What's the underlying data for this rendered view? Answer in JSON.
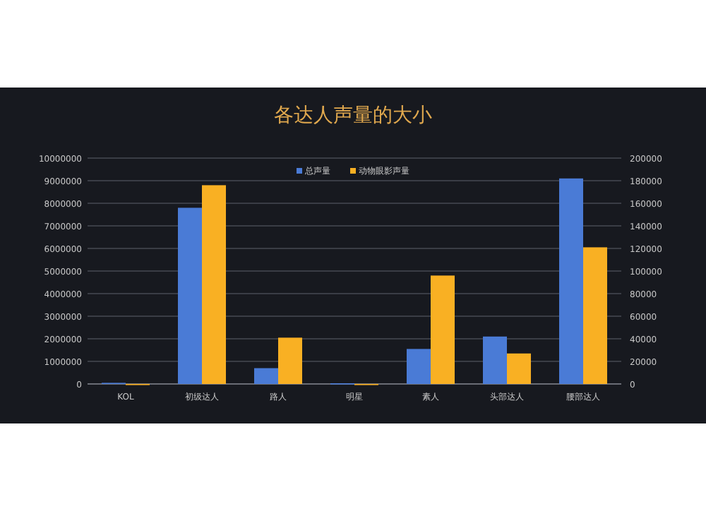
{
  "chart_data": {
    "type": "bar",
    "title": "各达人声量的大小",
    "categories": [
      "KOL",
      "初级达人",
      "路人",
      "明星",
      "素人",
      "头部达人",
      "腰部达人"
    ],
    "series": [
      {
        "name": "总声量",
        "color": "#4a7bd6",
        "values": [
          50000,
          7800000,
          700000,
          30000,
          1550000,
          2100000,
          9100000
        ]
      },
      {
        "name": "动物眼影声量",
        "color": "#f9b023",
        "axis": "y2",
        "values": [
          0,
          176000,
          41000,
          0,
          96000,
          27000,
          121000
        ]
      }
    ],
    "ylim": [
      0,
      10000000
    ],
    "yticks": [
      0,
      1000000,
      2000000,
      3000000,
      4000000,
      5000000,
      6000000,
      7000000,
      8000000,
      9000000,
      10000000
    ],
    "y2lim": [
      0,
      200000
    ],
    "y2ticks": [
      0,
      20000,
      40000,
      60000,
      80000,
      100000,
      120000,
      140000,
      160000,
      180000,
      200000
    ],
    "grid": "y",
    "legend": "top"
  }
}
